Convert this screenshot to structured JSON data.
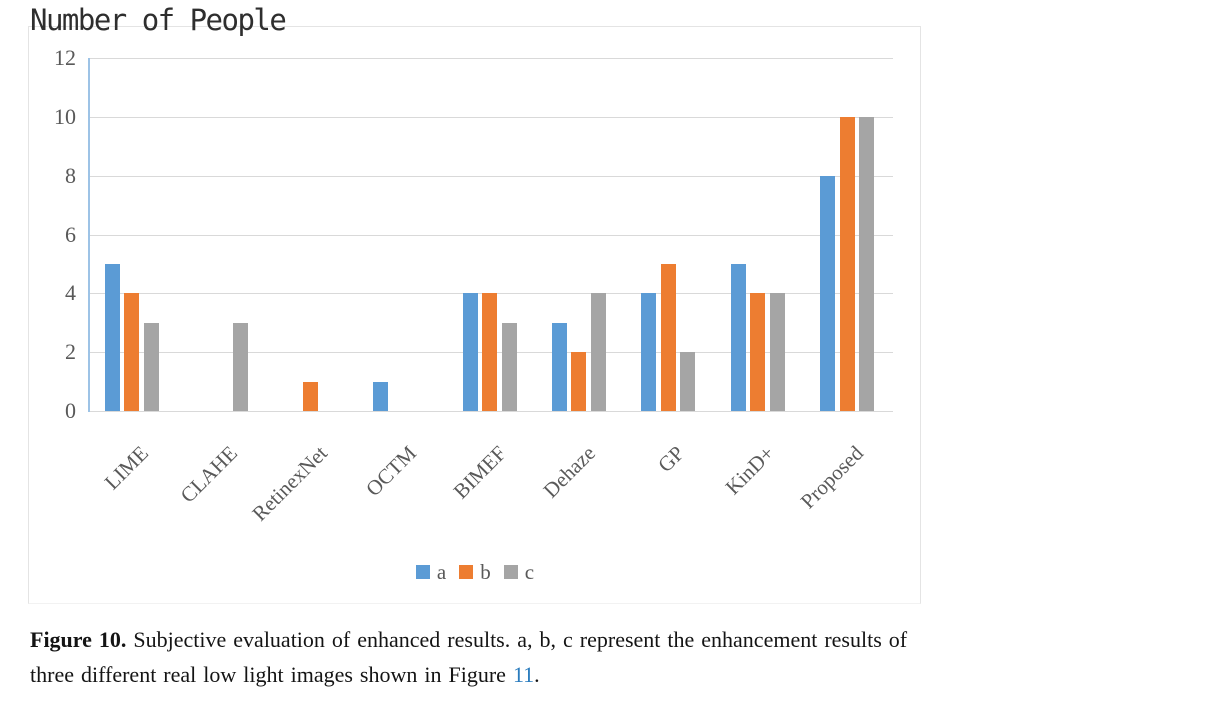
{
  "chart_data": {
    "type": "bar",
    "title": "Number of People",
    "categories": [
      "LIME",
      "CLAHE",
      "RetinexNet",
      "OCTM",
      "BIMEF",
      "Dehaze",
      "GP",
      "KinD+",
      "Proposed"
    ],
    "series": [
      {
        "name": "a",
        "color": "#5B9BD5",
        "values": [
          5,
          0,
          0,
          1,
          4,
          3,
          4,
          5,
          8
        ]
      },
      {
        "name": "b",
        "color": "#ED7D31",
        "values": [
          4,
          0,
          1,
          0,
          4,
          2,
          5,
          4,
          10
        ]
      },
      {
        "name": "c",
        "color": "#A5A5A5",
        "values": [
          3,
          3,
          0,
          0,
          3,
          4,
          2,
          4,
          10
        ]
      }
    ],
    "xlabel": "",
    "ylabel": "Number of People",
    "ylim": [
      0,
      12
    ],
    "yticks": [
      0,
      2,
      4,
      6,
      8,
      10,
      12
    ],
    "grid": true,
    "legend_position": "bottom",
    "colors": {
      "gridline": "#d9d9d9",
      "axis_line": "#9dc3e6",
      "tick_text": "#595959"
    }
  },
  "caption": {
    "lines": [
      {
        "label": "Figure 10.",
        "text": " Subjective evaluation of enhanced results.  a, b, c represent the enhancement results of"
      },
      {
        "text_before_link": "three different real low light images shown in Figure ",
        "link": "11",
        "text_after_link": "."
      }
    ]
  }
}
